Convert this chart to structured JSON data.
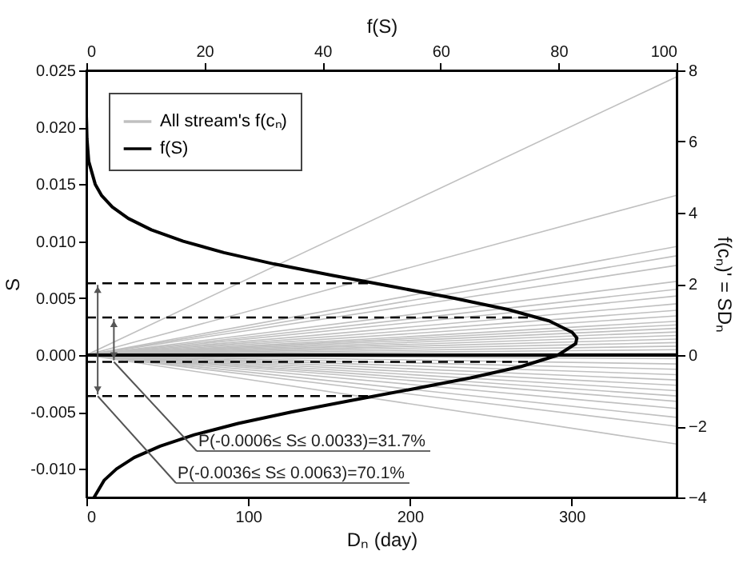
{
  "chart_data": {
    "type": "line",
    "xlabel": "Dₙ (day)",
    "ylabel": "S",
    "x2label": "f(S)",
    "y2label": "f(cₙ)' = SDₙ",
    "xlim": [
      0,
      365
    ],
    "xticks": [
      0,
      100,
      200,
      300
    ],
    "x2lim": [
      0,
      100
    ],
    "x2ticks": [
      0,
      20,
      40,
      60,
      80,
      100
    ],
    "ylim": [
      -0.0125,
      0.025
    ],
    "yticks": [
      {
        "value": -0.01,
        "label": "-0.010"
      },
      {
        "value": -0.005,
        "label": "-0.005"
      },
      {
        "value": 0,
        "label": "0.000"
      },
      {
        "value": 0.005,
        "label": "0.005"
      },
      {
        "value": 0.01,
        "label": "0.010"
      },
      {
        "value": 0.015,
        "label": "0.015"
      },
      {
        "value": 0.02,
        "label": "0.020"
      },
      {
        "value": 0.025,
        "label": "0.025"
      }
    ],
    "y2lim": [
      -4,
      8
    ],
    "y2ticks": [
      -4,
      -2,
      0,
      2,
      4,
      6,
      8
    ],
    "legend": "top left",
    "series": [
      {
        "name": "All stream's f(cₙ)",
        "color": "#c0c0c0",
        "axis": "y2",
        "x": [
          0,
          365
        ],
        "values": [
          0,
          7.82
        ]
      },
      {
        "color": "#c0c0c0",
        "axis": "y2",
        "x": [
          0,
          365
        ],
        "values": [
          0,
          4.49
        ]
      },
      {
        "color": "#c0c0c0",
        "axis": "y2",
        "x": [
          0,
          365
        ],
        "values": [
          0,
          3.05
        ]
      },
      {
        "color": "#c0c0c0",
        "axis": "y2",
        "x": [
          0,
          365
        ],
        "values": [
          0,
          2.79
        ]
      },
      {
        "color": "#c0c0c0",
        "axis": "y2",
        "x": [
          0,
          365
        ],
        "values": [
          0,
          2.52
        ]
      },
      {
        "color": "#c0c0c0",
        "axis": "y2",
        "x": [
          0,
          365
        ],
        "values": [
          0,
          2.07
        ]
      },
      {
        "color": "#c0c0c0",
        "axis": "y2",
        "x": [
          0,
          365
        ],
        "values": [
          0,
          1.85
        ]
      },
      {
        "color": "#c0c0c0",
        "axis": "y2",
        "x": [
          0,
          365
        ],
        "values": [
          0,
          1.66
        ]
      },
      {
        "color": "#c0c0c0",
        "axis": "y2",
        "x": [
          0,
          365
        ],
        "values": [
          0,
          1.44
        ]
      },
      {
        "color": "#c0c0c0",
        "axis": "y2",
        "x": [
          0,
          365
        ],
        "values": [
          0,
          1.26
        ]
      },
      {
        "color": "#c0c0c0",
        "axis": "y2",
        "x": [
          0,
          365
        ],
        "values": [
          0,
          1.1
        ]
      },
      {
        "color": "#c0c0c0",
        "axis": "y2",
        "x": [
          0,
          365
        ],
        "values": [
          0,
          0.95
        ]
      },
      {
        "color": "#c0c0c0",
        "axis": "y2",
        "x": [
          0,
          365
        ],
        "values": [
          0,
          0.85
        ]
      },
      {
        "color": "#c0c0c0",
        "axis": "y2",
        "x": [
          0,
          365
        ],
        "values": [
          0,
          0.75
        ]
      },
      {
        "color": "#c0c0c0",
        "axis": "y2",
        "x": [
          0,
          365
        ],
        "values": [
          0,
          0.65
        ]
      },
      {
        "color": "#c0c0c0",
        "axis": "y2",
        "x": [
          0,
          365
        ],
        "values": [
          0,
          0.55
        ]
      },
      {
        "color": "#c0c0c0",
        "axis": "y2",
        "x": [
          0,
          365
        ],
        "values": [
          0,
          0.45
        ]
      },
      {
        "color": "#c0c0c0",
        "axis": "y2",
        "x": [
          0,
          365
        ],
        "values": [
          0,
          0.35
        ]
      },
      {
        "color": "#c0c0c0",
        "axis": "y2",
        "x": [
          0,
          365
        ],
        "values": [
          0,
          0.25
        ]
      },
      {
        "color": "#c0c0c0",
        "axis": "y2",
        "x": [
          0,
          365
        ],
        "values": [
          0,
          0.15
        ]
      },
      {
        "color": "#c0c0c0",
        "axis": "y2",
        "x": [
          0,
          365
        ],
        "values": [
          0,
          0.05
        ]
      },
      {
        "color": "#c0c0c0",
        "axis": "y2",
        "x": [
          0,
          365
        ],
        "values": [
          0,
          -0.1
        ]
      },
      {
        "color": "#c0c0c0",
        "axis": "y2",
        "x": [
          0,
          365
        ],
        "values": [
          0,
          -0.25
        ]
      },
      {
        "color": "#c0c0c0",
        "axis": "y2",
        "x": [
          0,
          365
        ],
        "values": [
          0,
          -0.4
        ]
      },
      {
        "color": "#c0c0c0",
        "axis": "y2",
        "x": [
          0,
          365
        ],
        "values": [
          0,
          -0.55
        ]
      },
      {
        "color": "#c0c0c0",
        "axis": "y2",
        "x": [
          0,
          365
        ],
        "values": [
          0,
          -0.7
        ]
      },
      {
        "color": "#c0c0c0",
        "axis": "y2",
        "x": [
          0,
          365
        ],
        "values": [
          0,
          -0.85
        ]
      },
      {
        "color": "#c0c0c0",
        "axis": "y2",
        "x": [
          0,
          365
        ],
        "values": [
          0,
          -1.0
        ]
      },
      {
        "color": "#c0c0c0",
        "axis": "y2",
        "x": [
          0,
          365
        ],
        "values": [
          0,
          -1.15
        ]
      },
      {
        "color": "#c0c0c0",
        "axis": "y2",
        "x": [
          0,
          365
        ],
        "values": [
          0,
          -1.3
        ]
      },
      {
        "color": "#c0c0c0",
        "axis": "y2",
        "x": [
          0,
          365
        ],
        "values": [
          0,
          -1.5
        ]
      },
      {
        "color": "#c0c0c0",
        "axis": "y2",
        "x": [
          0,
          365
        ],
        "values": [
          0,
          -1.75
        ]
      },
      {
        "color": "#c0c0c0",
        "axis": "y2",
        "x": [
          0,
          365
        ],
        "values": [
          0,
          -2.0
        ]
      },
      {
        "color": "#c0c0c0",
        "axis": "y2",
        "x": [
          0,
          365
        ],
        "values": [
          0,
          -2.5
        ]
      },
      {
        "name": "f(S)",
        "color": "#000000",
        "axis": "x2",
        "x": [
          1.3,
          3.0,
          5.1,
          8.1,
          12.5,
          18.3,
          25.7,
          34.7,
          44.7,
          55.1,
          65.1,
          73.7,
          79.9,
          82.9,
          83.1,
          82.3,
          78.4,
          71.4,
          62.2,
          52.0,
          41.6,
          31.8,
          23.3,
          16.4,
          11.0,
          7.1,
          4.4,
          2.6,
          1.5,
          0.4,
          0.1,
          0,
          0
        ],
        "values": [
          -0.0125,
          -0.011,
          -0.01,
          -0.009,
          -0.008,
          -0.007,
          -0.006,
          -0.005,
          -0.004,
          -0.003,
          -0.002,
          -0.001,
          0,
          0.001,
          0.0015,
          0.002,
          0.003,
          0.004,
          0.005,
          0.006,
          0.007,
          0.008,
          0.009,
          0.01,
          0.011,
          0.012,
          0.013,
          0.014,
          0.015,
          0.017,
          0.019,
          0.021,
          0.025
        ]
      },
      {
        "color": "#000000",
        "axis": "x2",
        "line_style": "dashed",
        "x": [
          0,
          48
        ],
        "values": [
          0.0063,
          0.0063
        ]
      },
      {
        "color": "#000000",
        "axis": "x2",
        "line_style": "dashed",
        "x": [
          0,
          76
        ],
        "values": [
          0.0033,
          0.0033
        ]
      },
      {
        "color": "#000000",
        "axis": "x2",
        "line_style": "dashed",
        "x": [
          0,
          76
        ],
        "values": [
          -0.0006,
          -0.0006
        ]
      },
      {
        "color": "#000000",
        "axis": "x2",
        "line_style": "dashed",
        "x": [
          0,
          48
        ],
        "values": [
          -0.0036,
          -0.0036
        ]
      }
    ],
    "ref_lines": [
      {
        "axis": "y",
        "value": 0,
        "color": "#000000"
      }
    ],
    "annotations": [
      {
        "text": "P(-0.0006≤ S≤ 0.0033)=31.7%",
        "x": 17,
        "y": -0.0006
      },
      {
        "text": "P(-0.0036≤ S≤ 0.0063)=70.1%",
        "x": 7,
        "y": -0.0036
      }
    ]
  }
}
